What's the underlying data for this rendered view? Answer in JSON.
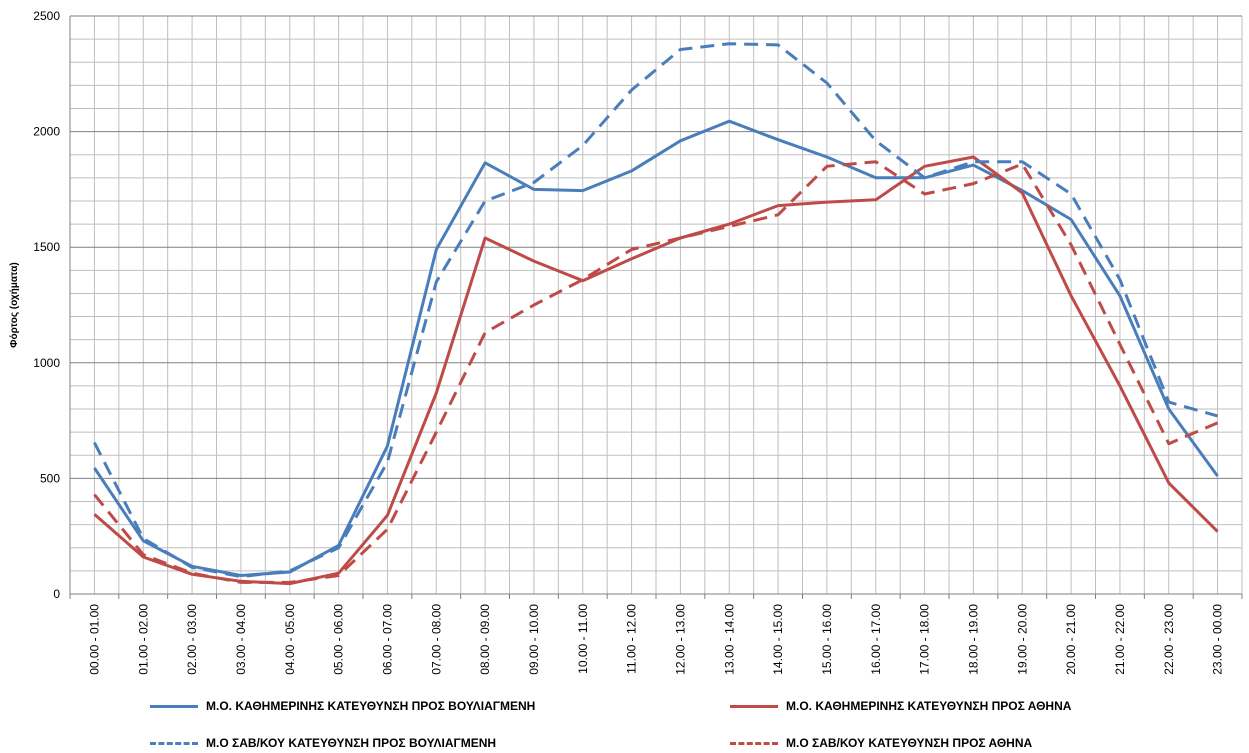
{
  "chart_data": {
    "type": "line",
    "ylabel": "Φόρτος (οχήματα)",
    "xlabel": "",
    "ylim": [
      0,
      2500
    ],
    "yticks": [
      "0",
      "500",
      "1000",
      "1500",
      "2000",
      "2500"
    ],
    "grid": true,
    "legend_position": "bottom",
    "categories": [
      "00.00 - 01.00",
      "01.00 - 02.00",
      "02.00 - 03.00",
      "03.00 - 04.00",
      "04.00 - 05.00",
      "05.00 - 06.00",
      "06.00 - 07.00",
      "07.00 - 08.00",
      "08.00 - 09.00",
      "09.00 - 10.00",
      "10.00 - 11.00",
      "11.00 - 12.00",
      "12.00 - 13.00",
      "13.00 - 14.00",
      "14.00 - 15.00",
      "15.00 - 16.00",
      "16.00 - 17.00",
      "17.00 - 18.00",
      "18.00 - 19.00",
      "19.00 - 20.00",
      "20.00 - 21.00",
      "21.00 - 22.00",
      "22.00 - 23.00",
      "23.00 - 00.00"
    ],
    "series": [
      {
        "name": "Μ.Ο. ΚΑΘΗΜΕΡΙΝΗΣ ΚΑΤΕΥΘΥΝΣΗ ΠΡΟΣ ΒΟΥΛΙΑΓΜΕΝΗ",
        "color": "#4A7EBB",
        "dash": "solid",
        "values": [
          545,
          230,
          120,
          80,
          95,
          210,
          640,
          1490,
          1865,
          1750,
          1745,
          1830,
          1960,
          2045,
          1965,
          1890,
          1800,
          1800,
          1855,
          1745,
          1620,
          1290,
          800,
          510
        ]
      },
      {
        "name": "Μ.Ο. ΚΑΘΗΜΕΡΙΝΗΣ ΚΑΤΕΥΘΥΝΣΗ ΠΡΟΣ ΑΘΗΝΑ",
        "color": "#BE4B48",
        "dash": "solid",
        "values": [
          345,
          160,
          85,
          55,
          45,
          90,
          340,
          870,
          1540,
          1440,
          1355,
          1450,
          1540,
          1600,
          1680,
          1695,
          1705,
          1850,
          1890,
          1735,
          1290,
          900,
          480,
          270
        ]
      },
      {
        "name": "Μ.Ο ΣΑΒ/ΚΟΥ ΚΑΤΕΥΘΥΝΣΗ ΠΡΟΣ ΒΟΥΛΙΑΓΜΕΝΗ",
        "color": "#4A7EBB",
        "dash": "dashed",
        "values": [
          655,
          240,
          115,
          75,
          100,
          200,
          570,
          1350,
          1700,
          1780,
          1940,
          2180,
          2355,
          2380,
          2375,
          2210,
          1960,
          1800,
          1870,
          1870,
          1730,
          1360,
          830,
          770
        ]
      },
      {
        "name": "Μ.Ο ΣΑΒ/ΚΟΥ ΚΑΤΕΥΘΥΝΣΗ ΠΡΟΣ ΑΘΗΝΑ",
        "color": "#BE4B48",
        "dash": "dashed",
        "values": [
          430,
          170,
          90,
          50,
          50,
          80,
          280,
          700,
          1130,
          1250,
          1360,
          1490,
          1540,
          1590,
          1640,
          1850,
          1870,
          1730,
          1775,
          1860,
          1510,
          1080,
          650,
          740
        ]
      }
    ]
  }
}
